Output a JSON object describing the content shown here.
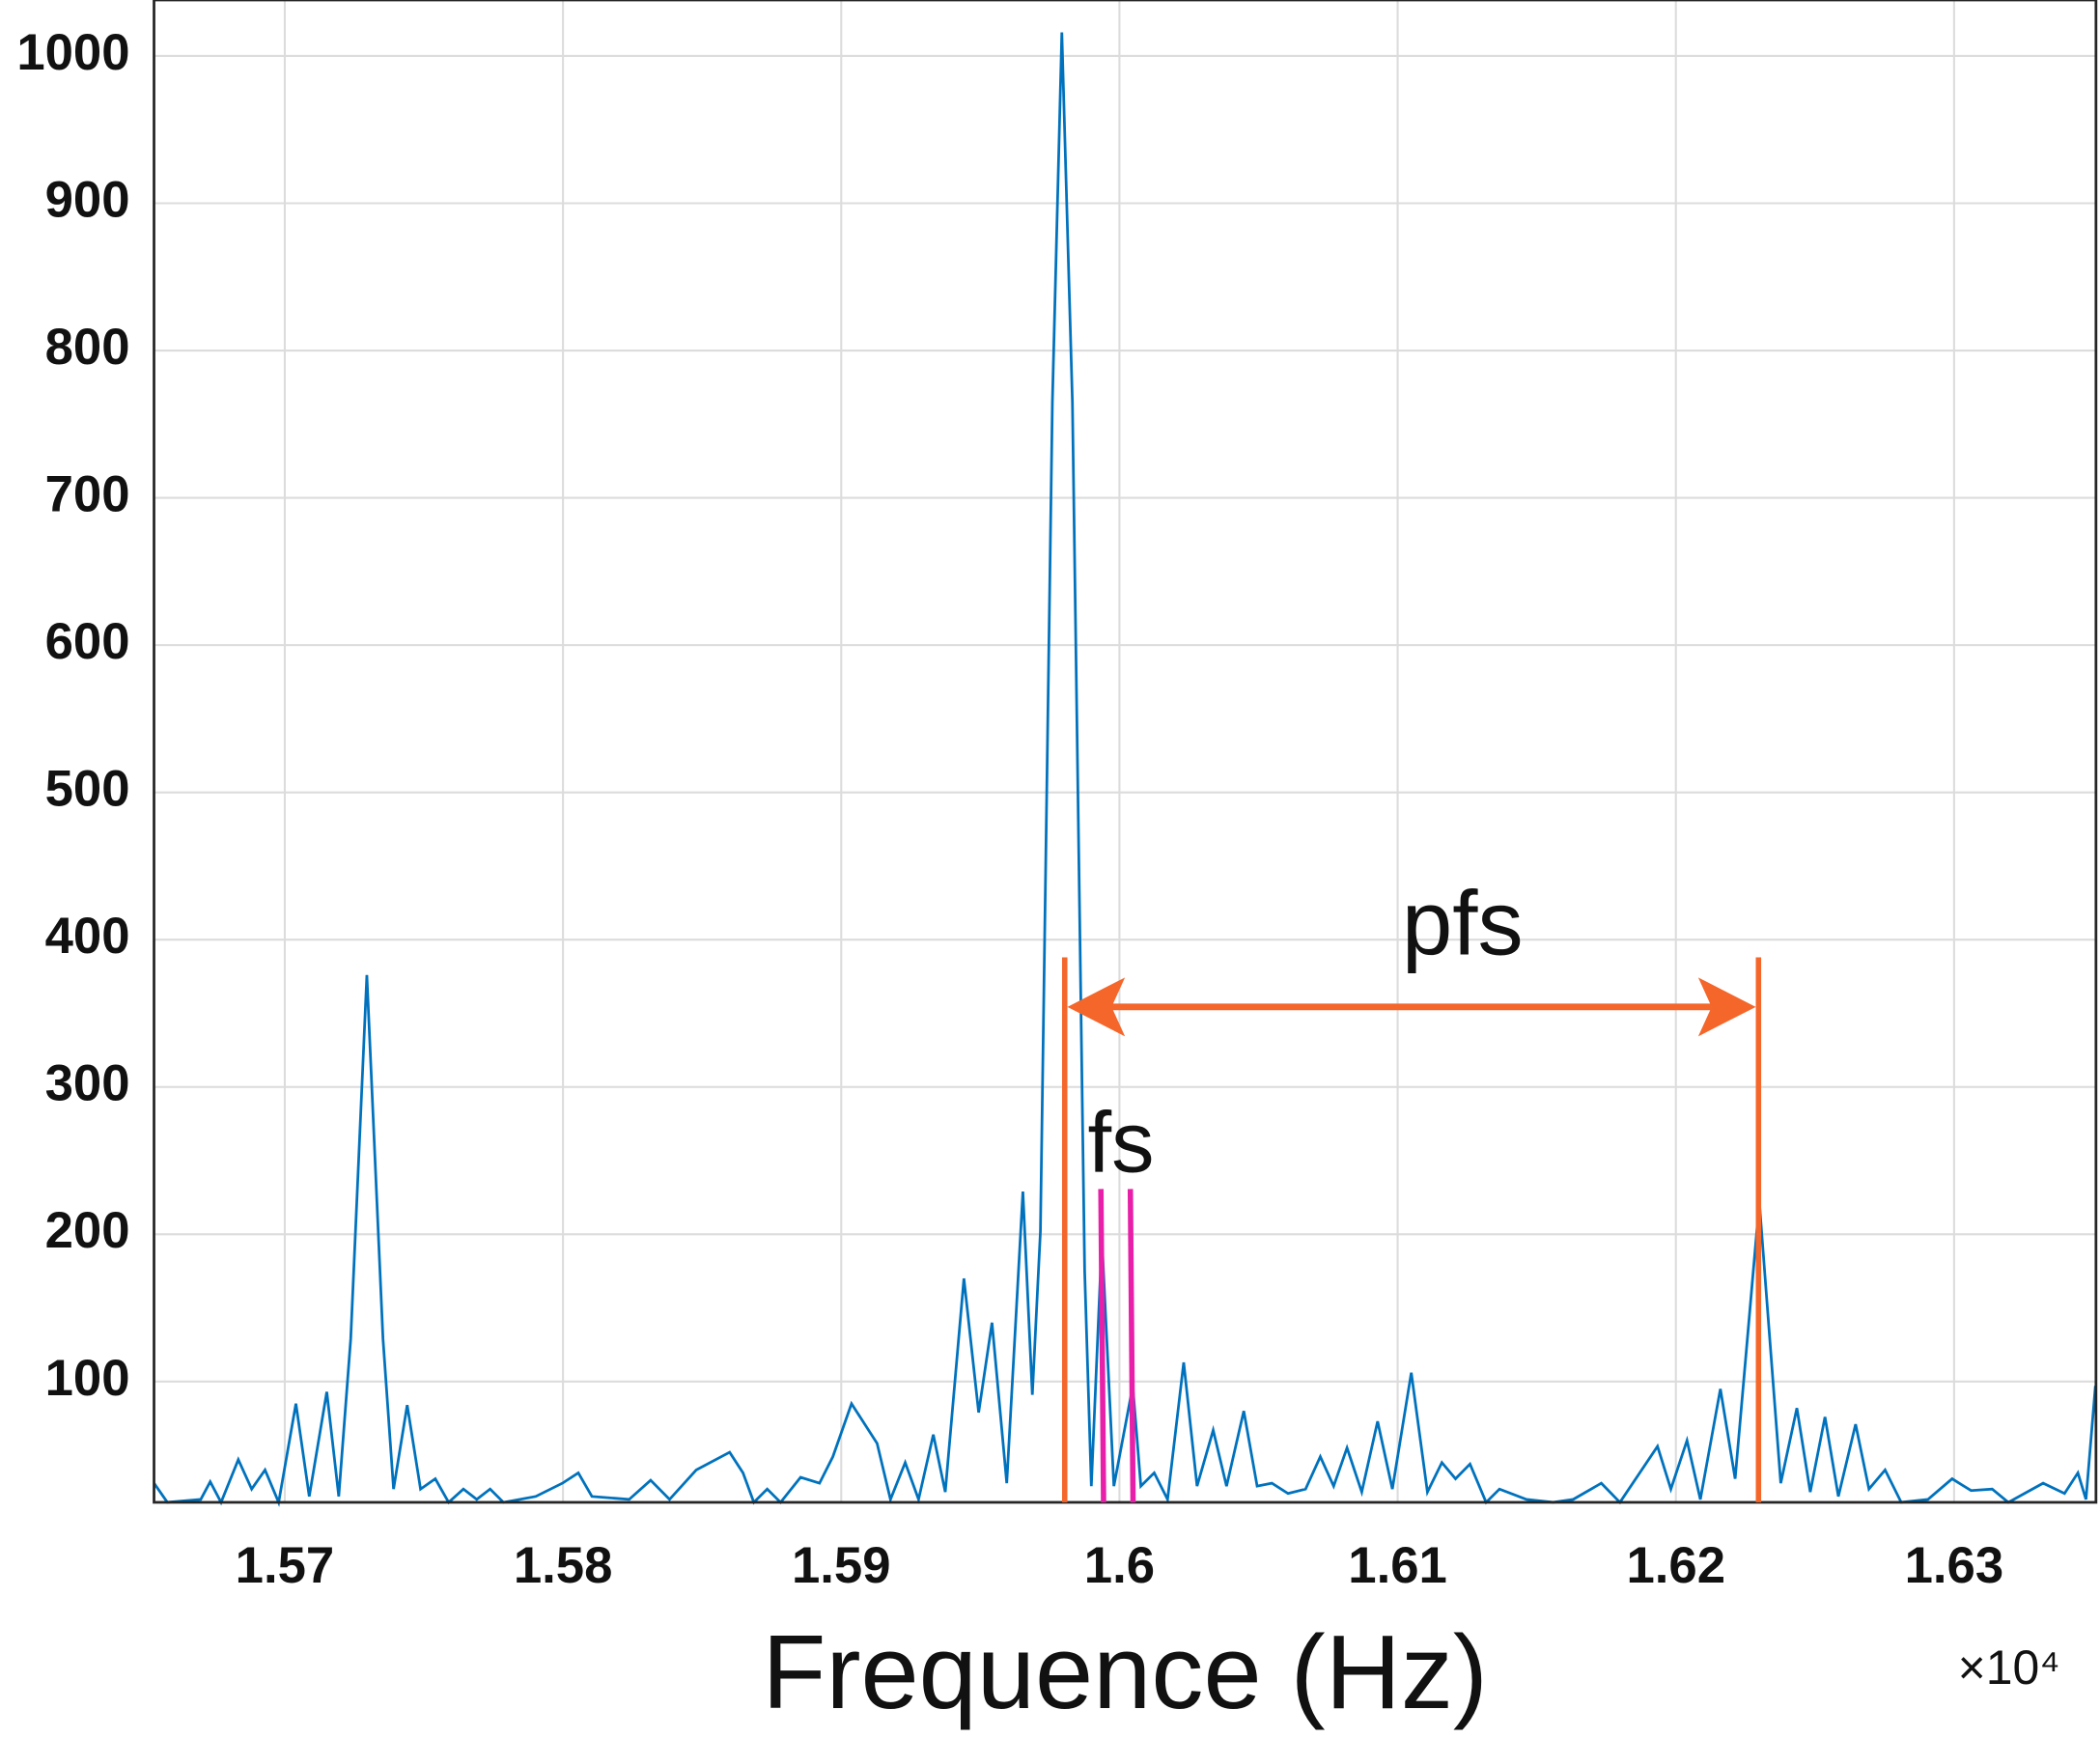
{
  "chart_data": {
    "type": "line",
    "xlabel": "Frequence (Hz)",
    "x_multiplier": "×10⁴",
    "annotations": [
      "pfs",
      "fs"
    ],
    "color": "#0072bd",
    "grid": true,
    "xlim": [
      1.5653,
      1.6351
    ],
    "ylim": [
      18,
      1038
    ],
    "xticks": [
      1.57,
      1.58,
      1.59,
      1.6,
      1.61,
      1.62,
      1.63
    ],
    "yticks": [
      100,
      200,
      300,
      400,
      500,
      600,
      700,
      800,
      900,
      1000
    ],
    "x": [
      1.5653,
      1.56578,
      1.56698,
      1.56732,
      1.56771,
      1.56833,
      1.56881,
      1.56929,
      1.56978,
      1.5704,
      1.57088,
      1.57151,
      1.57194,
      1.57237,
      1.57295,
      1.57353,
      1.57391,
      1.5744,
      1.57488,
      1.57541,
      1.57589,
      1.57642,
      1.5769,
      1.57738,
      1.57786,
      1.57902,
      1.57998,
      1.58055,
      1.58104,
      1.58238,
      1.58315,
      1.58383,
      1.58479,
      1.58599,
      1.58647,
      1.58686,
      1.58734,
      1.58782,
      1.58854,
      1.58922,
      1.5897,
      1.59037,
      1.59129,
      1.59177,
      1.5923,
      1.59278,
      1.59331,
      1.59374,
      1.59441,
      1.59494,
      1.59542,
      1.59595,
      1.59653,
      1.59687,
      1.59716,
      1.59759,
      1.59793,
      1.59831,
      1.59875,
      1.59899,
      1.59937,
      1.5998,
      1.60048,
      1.60077,
      1.60125,
      1.60173,
      1.60231,
      1.60279,
      1.60337,
      1.60385,
      1.60447,
      1.60495,
      1.60548,
      1.60606,
      1.60669,
      1.60722,
      1.6077,
      1.60818,
      1.60871,
      1.60928,
      1.60981,
      1.61049,
      1.61107,
      1.61159,
      1.61208,
      1.6126,
      1.61318,
      1.61366,
      1.61463,
      1.61559,
      1.61631,
      1.61732,
      1.61799,
      1.61934,
      1.61982,
      1.6204,
      1.62088,
      1.6216,
      1.62213,
      1.623,
      1.62377,
      1.62435,
      1.62483,
      1.62536,
      1.62584,
      1.62646,
      1.62694,
      1.62752,
      1.6281,
      1.62906,
      1.62993,
      1.63061,
      1.63137,
      1.63195,
      1.6332,
      1.63397,
      1.63445,
      1.63474,
      1.63508
    ],
    "values": [
      31,
      18,
      20,
      32,
      18,
      47,
      27,
      40,
      18,
      85,
      22,
      93,
      22,
      129,
      376,
      129,
      27,
      84,
      27,
      34,
      18,
      27,
      20,
      27,
      18,
      22,
      31,
      38,
      22,
      20,
      33,
      20,
      40,
      52,
      38,
      18,
      27,
      18,
      35,
      31,
      49,
      85,
      58,
      20,
      45,
      20,
      64,
      25,
      170,
      79,
      140,
      31,
      229,
      91,
      202,
      765,
      1016,
      765,
      175,
      29,
      197,
      29,
      97,
      29,
      38,
      20,
      113,
      29,
      67,
      29,
      80,
      29,
      31,
      24,
      27,
      49,
      29,
      55,
      25,
      73,
      27,
      106,
      25,
      45,
      34,
      44,
      18,
      27,
      20,
      18,
      20,
      31,
      18,
      56,
      27,
      60,
      20,
      95,
      34,
      222,
      31,
      82,
      25,
      76,
      22,
      71,
      27,
      40,
      18,
      20,
      34,
      26,
      27,
      18,
      31,
      24,
      38,
      20,
      97
    ]
  }
}
